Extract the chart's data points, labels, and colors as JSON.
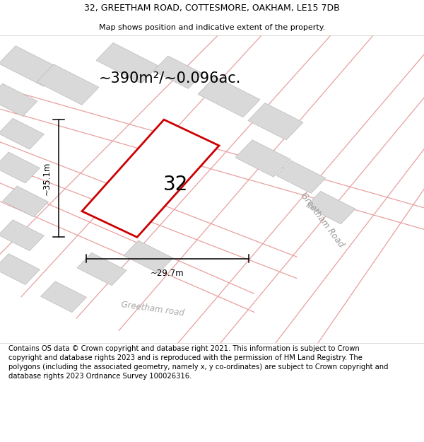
{
  "title_line1": "32, GREETHAM ROAD, COTTESMORE, OAKHAM, LE15 7DB",
  "title_line2": "Map shows position and indicative extent of the property.",
  "area_text": "~390m²/~0.096ac.",
  "property_number": "32",
  "dim_vertical": "~35.1m",
  "dim_horizontal": "~29.7m",
  "road_label1": "Greetham Road",
  "road_label2": "Greetham road",
  "footer_text": "Contains OS data © Crown copyright and database right 2021. This information is subject to Crown copyright and database rights 2023 and is reproduced with the permission of HM Land Registry. The polygons (including the associated geometry, namely x, y co-ordinates) are subject to Crown copyright and database rights 2023 Ordnance Survey 100026316.",
  "plot_outline_color": "#cc0000",
  "building_fill": "#d9d9d9",
  "building_edge": "#bbbbbb",
  "road_line_color": "#e8a0a0",
  "dim_line_color": "#000000",
  "map_bg": "#f0eeea",
  "title_fontsize": 9,
  "subtitle_fontsize": 8,
  "area_fontsize": 15,
  "property_num_fontsize": 20,
  "dim_fontsize": 8.5,
  "footer_fontsize": 7.2,
  "road_label_fontsize": 8.5
}
